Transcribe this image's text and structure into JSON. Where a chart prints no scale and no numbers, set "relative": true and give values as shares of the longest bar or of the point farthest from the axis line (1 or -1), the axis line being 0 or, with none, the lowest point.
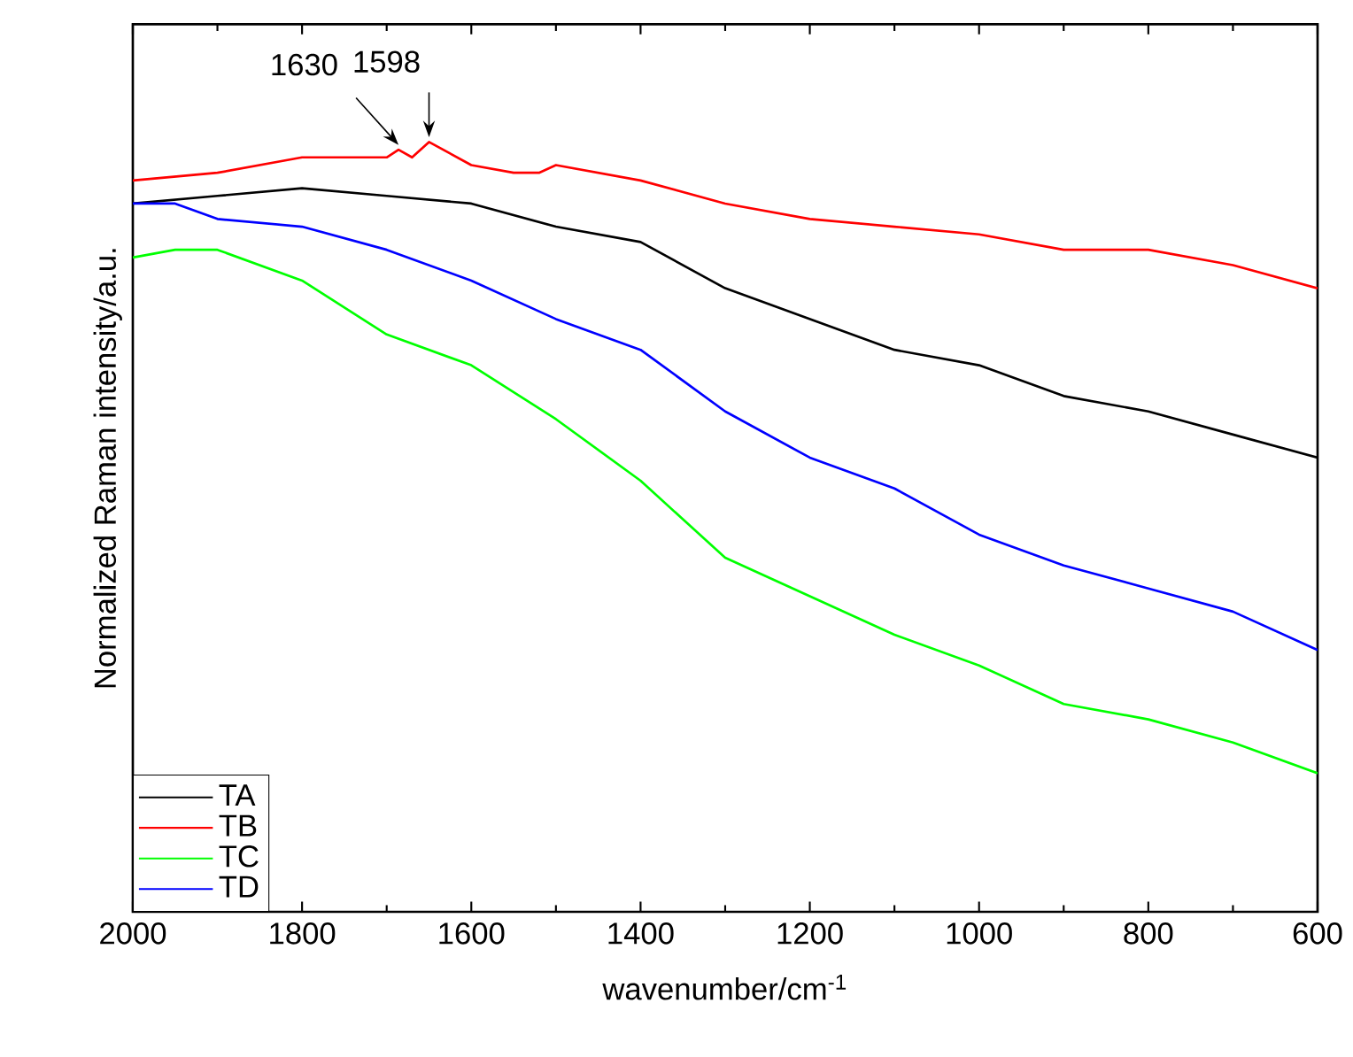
{
  "chart_data": {
    "type": "line",
    "relative": true,
    "xlabel": "wavenumber/cm$^{-1}$",
    "ylabel": "Normalized Raman intensity/a.u.",
    "xlim": [
      2000,
      600
    ],
    "xticks": [
      2000,
      1800,
      1600,
      1400,
      1200,
      1000,
      800,
      600
    ],
    "tick_labels": "x",
    "legend": "bottom left",
    "line_style": "solid",
    "series": [
      {
        "name": "TA",
        "color": "#000000",
        "x": [
          2000,
          1900,
          1800,
          1700,
          1600,
          1500,
          1400,
          1300,
          1200,
          1100,
          1000,
          900,
          800,
          700,
          600
        ],
        "values": [
          0.92,
          0.93,
          0.94,
          0.93,
          0.92,
          0.89,
          0.87,
          0.81,
          0.77,
          0.73,
          0.71,
          0.67,
          0.65,
          0.62,
          0.59
        ]
      },
      {
        "name": "TB",
        "color": "#ff0000",
        "x": [
          2000,
          1900,
          1800,
          1700,
          1686,
          1670,
          1650,
          1600,
          1550,
          1520,
          1500,
          1400,
          1300,
          1200,
          1100,
          1000,
          950,
          900,
          800,
          700,
          600
        ],
        "values": [
          0.95,
          0.96,
          0.98,
          0.98,
          0.99,
          0.98,
          1.0,
          0.97,
          0.96,
          0.96,
          0.97,
          0.95,
          0.92,
          0.9,
          0.89,
          0.88,
          0.87,
          0.86,
          0.86,
          0.84,
          0.81
        ]
      },
      {
        "name": "TC",
        "color": "#00ff00",
        "x": [
          2000,
          1950,
          1900,
          1800,
          1700,
          1600,
          1500,
          1400,
          1350,
          1300,
          1200,
          1100,
          1000,
          900,
          800,
          700,
          600
        ],
        "values": [
          0.85,
          0.86,
          0.86,
          0.82,
          0.75,
          0.71,
          0.64,
          0.56,
          0.51,
          0.46,
          0.41,
          0.36,
          0.32,
          0.27,
          0.25,
          0.22,
          0.18
        ]
      },
      {
        "name": "TD",
        "color": "#0000ff",
        "x": [
          2000,
          1950,
          1900,
          1800,
          1700,
          1600,
          1500,
          1400,
          1300,
          1200,
          1100,
          1000,
          900,
          800,
          700,
          600
        ],
        "values": [
          0.92,
          0.92,
          0.9,
          0.89,
          0.86,
          0.82,
          0.77,
          0.73,
          0.65,
          0.59,
          0.55,
          0.49,
          0.45,
          0.42,
          0.39,
          0.34
        ]
      }
    ],
    "annotations": [
      {
        "text": "1630",
        "x": 1686,
        "y": 0.99
      },
      {
        "text": "1598",
        "x": 1650,
        "y": 1.0
      }
    ]
  }
}
